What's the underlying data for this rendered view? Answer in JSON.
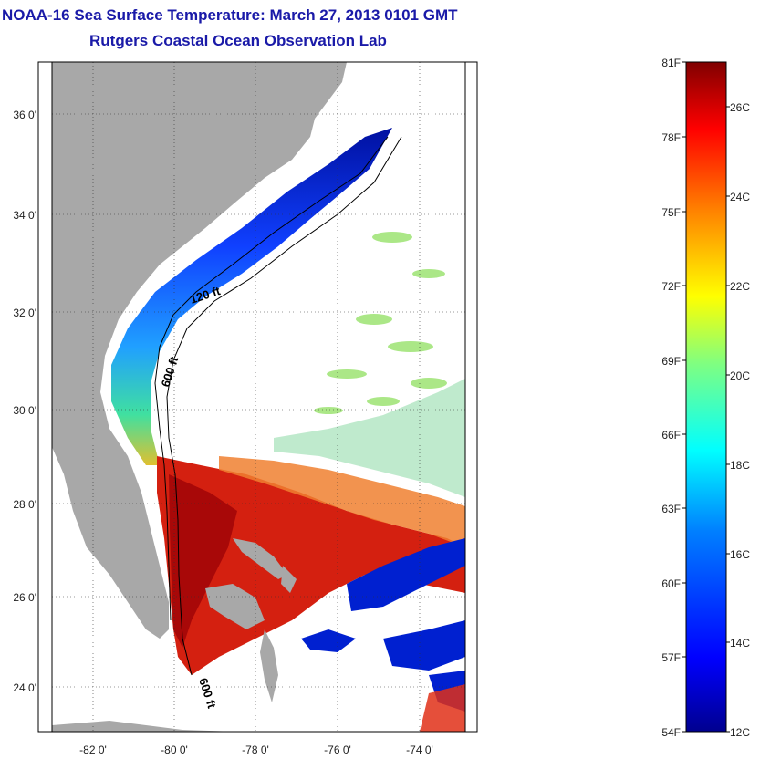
{
  "title": "NOAA-16 Sea Surface Temperature:  March 27, 2013 0101 GMT",
  "subtitle": "Rutgers Coastal Ocean Observation Lab",
  "map": {
    "lat_labels": [
      "36 0'",
      "34 0'",
      "32 0'",
      "30 0'",
      "28 0'",
      "26 0'",
      "24 0'"
    ],
    "lon_labels": [
      "-82 0'",
      "-80 0'",
      "-78 0'",
      "-76 0'",
      "-74 0'"
    ],
    "lat_range": [
      23.0,
      37.0
    ],
    "lon_range": [
      -83.0,
      -73.0
    ],
    "contour_labels": [
      "120 ft",
      "600 ft",
      "600 ft"
    ],
    "land_color": "#a8a8a8",
    "no_data_color": "#ffffff"
  },
  "colorbar": {
    "fahrenheit_labels": [
      "81F",
      "78F",
      "75F",
      "72F",
      "69F",
      "66F",
      "63F",
      "60F",
      "57F",
      "54F"
    ],
    "celsius_labels": [
      "26C",
      "24C",
      "22C",
      "20C",
      "18C",
      "16C",
      "14C",
      "12C"
    ],
    "range_f": [
      54,
      81
    ],
    "range_c": [
      12,
      27
    ],
    "colors": [
      "#00008f",
      "#0000ff",
      "#0080ff",
      "#00ffff",
      "#80ff80",
      "#ffff00",
      "#ff8000",
      "#ff0000",
      "#800000"
    ]
  }
}
